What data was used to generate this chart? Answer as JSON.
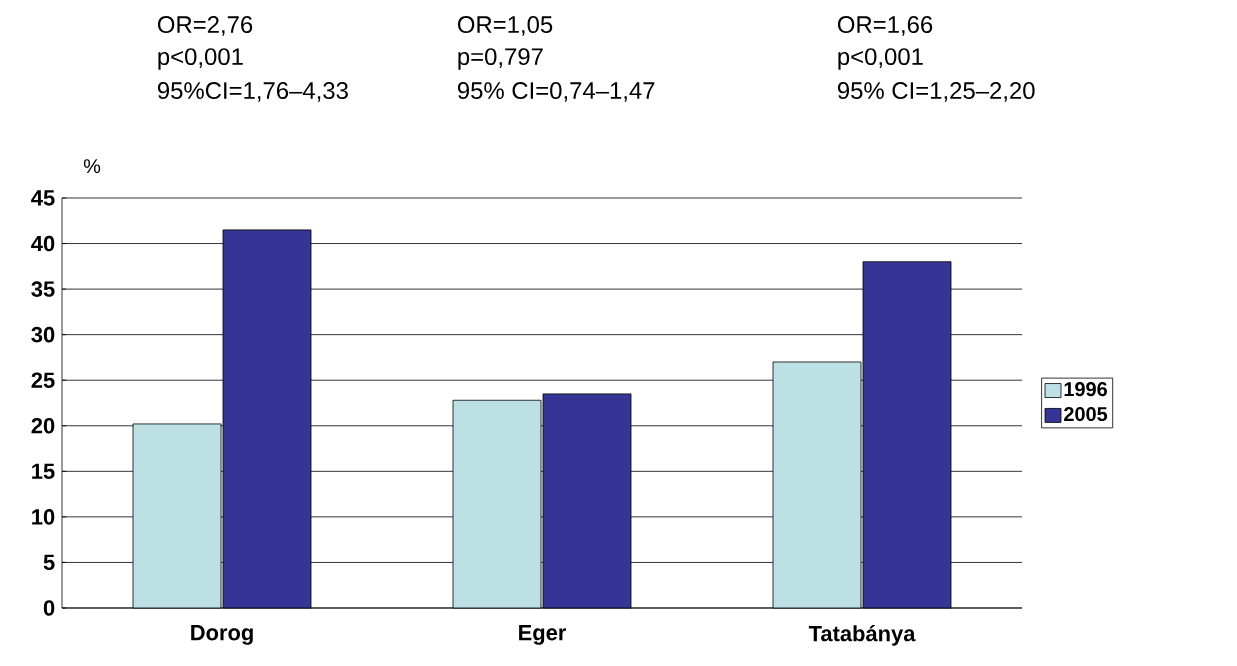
{
  "chart_data": {
    "type": "bar",
    "ylabel": "%",
    "categories": [
      "Dorog",
      "Eger",
      "Tatabánya"
    ],
    "series": [
      {
        "name": "1996",
        "color": "#bce0e3",
        "values": [
          20.2,
          22.8,
          27
        ]
      },
      {
        "name": "2005",
        "color": "#353598",
        "values": [
          41.5,
          23.5,
          38
        ]
      }
    ],
    "ylim": [
      0,
      45
    ],
    "yticks": [
      0,
      5,
      10,
      15,
      20,
      25,
      30,
      35,
      40,
      45
    ],
    "grid": "y",
    "legend": "right",
    "annotations": [
      "OR=2,76",
      "p<0,001",
      "95%CI=1,76–4,33",
      "OR=1,05",
      "p=0,797",
      "95% CI=0,74–1,47",
      "OR=1,66",
      "p<0,001",
      "95% CI=1,25–2,20"
    ]
  }
}
